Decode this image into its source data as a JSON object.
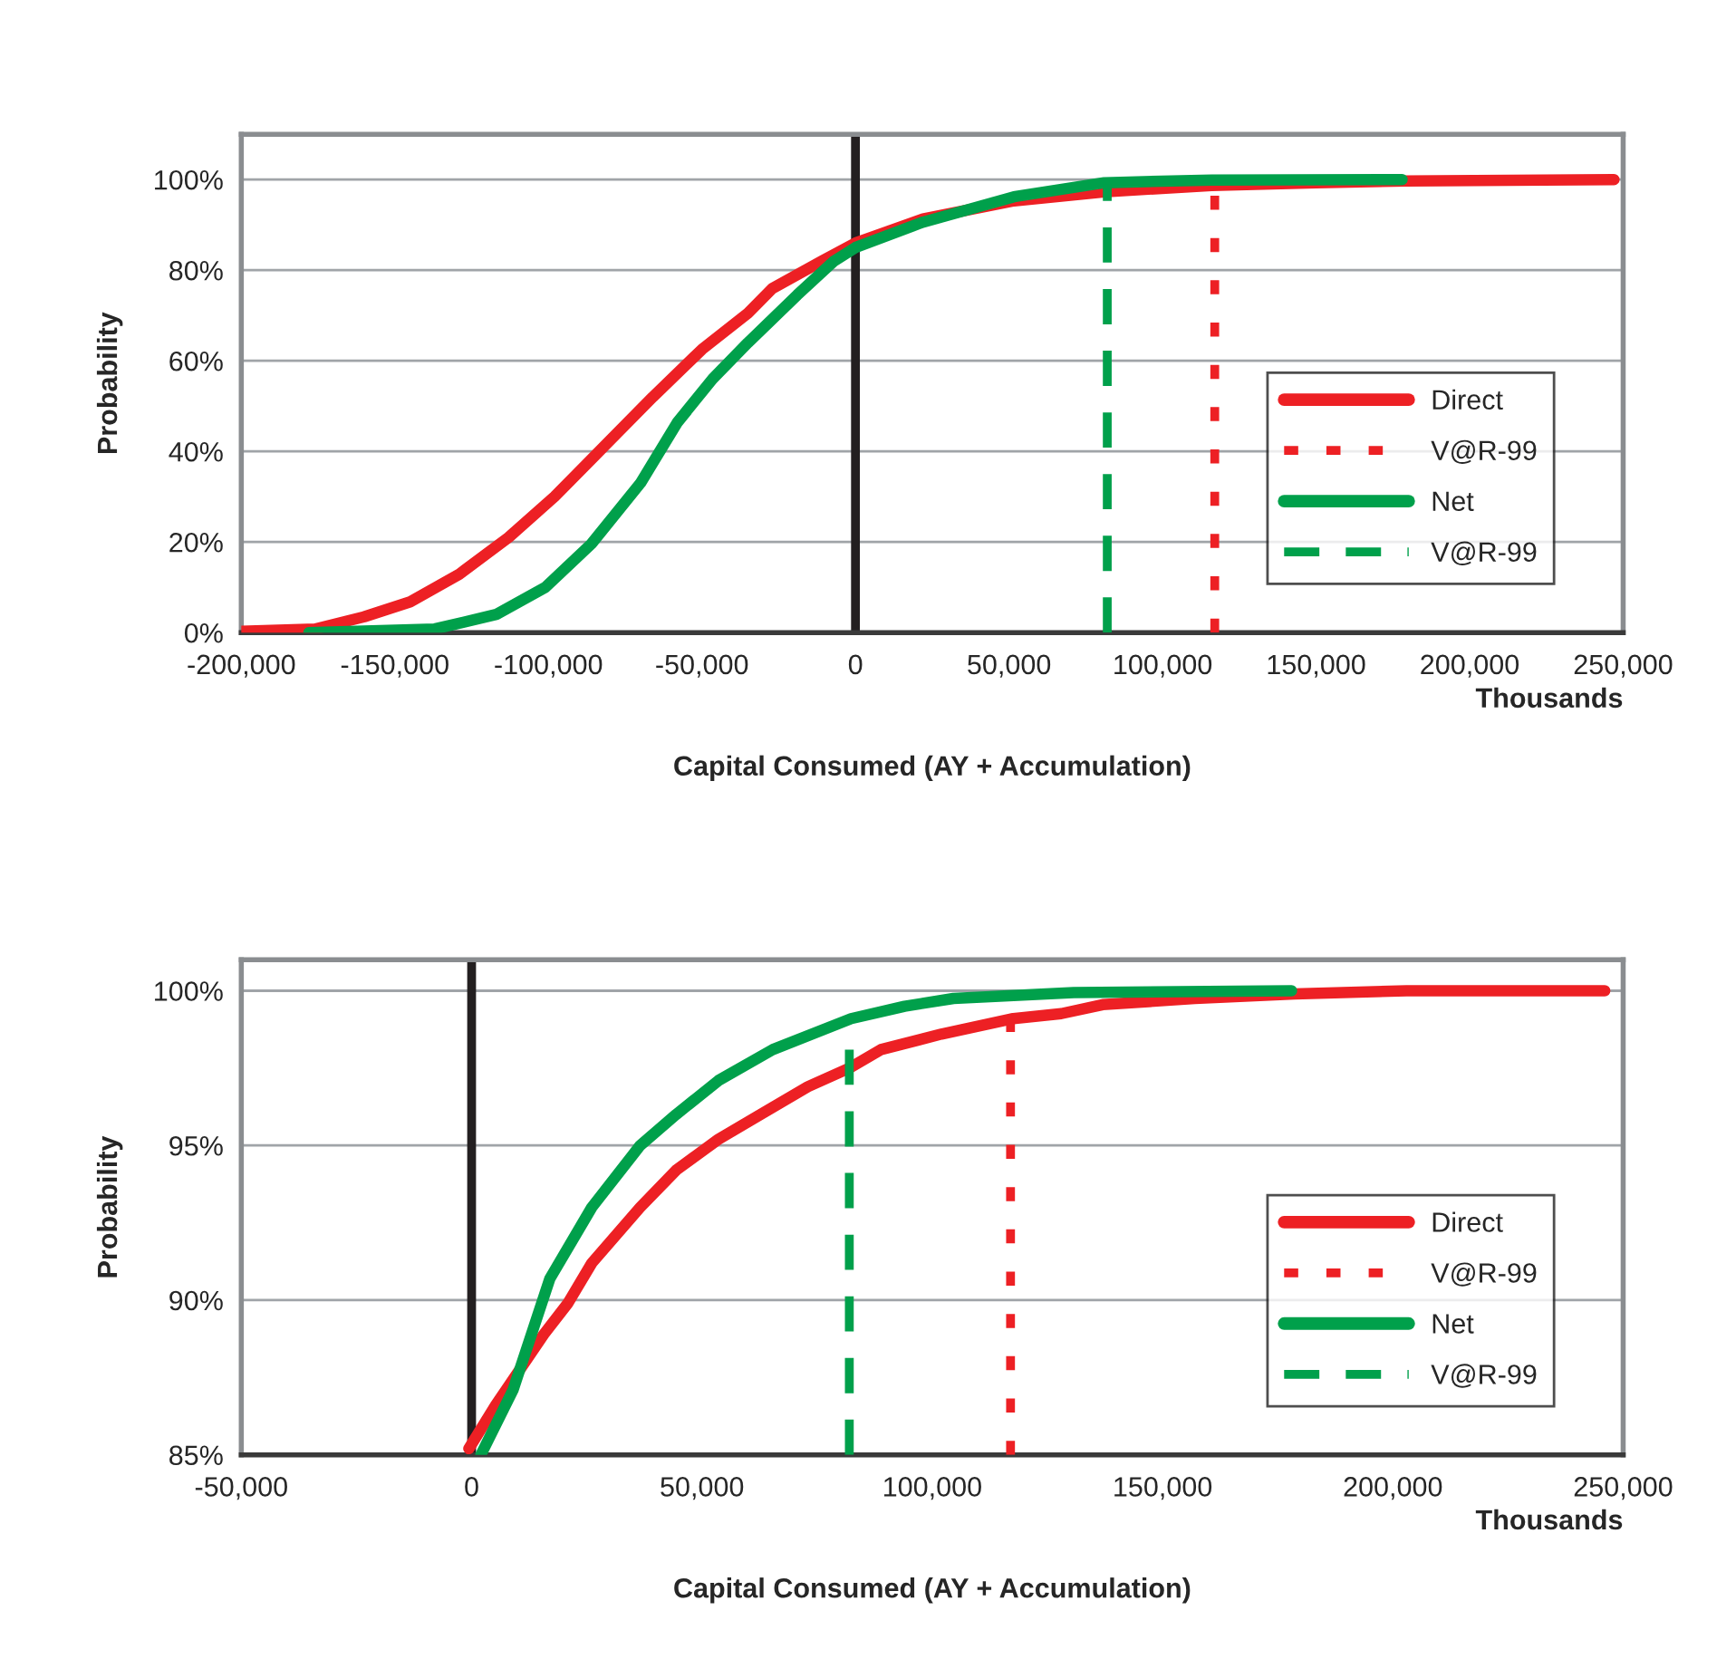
{
  "chart_data": [
    {
      "type": "line",
      "xlabel": "Capital Consumed (AY + Accumulation)",
      "ylabel": "Probability",
      "annotations": [
        "Thousands"
      ],
      "xlim": [
        -200000,
        250000
      ],
      "xticks": [
        {
          "value": -200000,
          "label": "-200,000"
        },
        {
          "value": -150000,
          "label": "-150,000"
        },
        {
          "value": -100000,
          "label": "-100,000"
        },
        {
          "value": -50000,
          "label": "-50,000"
        },
        0,
        {
          "value": 50000,
          "label": "50,000"
        },
        {
          "value": 100000,
          "label": "100,000"
        },
        {
          "value": 150000,
          "label": "150,000"
        },
        {
          "value": 200000,
          "label": "200,000"
        },
        {
          "value": 250000,
          "label": "250,000"
        }
      ],
      "ylim": [
        0,
        110
      ],
      "yticks": [
        {
          "value": 0,
          "label": "0%"
        },
        {
          "value": 20,
          "label": "20%"
        },
        {
          "value": 40,
          "label": "40%"
        },
        {
          "value": 60,
          "label": "60%"
        },
        {
          "value": 80,
          "label": "80%"
        },
        {
          "value": 100,
          "label": "100%"
        }
      ],
      "grid": "y",
      "legend": "bottom right",
      "marker": "none",
      "ref_lines": [
        {
          "axis": "x",
          "value": 0,
          "color": "#231f20"
        }
      ],
      "series": [
        {
          "name": "Direct",
          "color": "#ed2024",
          "line_style": "solid",
          "x": [
            -200000,
            -176000,
            -160000,
            -145000,
            -129000,
            -113000,
            -98000,
            -82000,
            -66000,
            -50000,
            -35000,
            -27000,
            -11000,
            0,
            22000,
            51600,
            81000,
            116000,
            150000,
            179000,
            247000
          ],
          "values": [
            0.3,
            0.8,
            3.5,
            6.8,
            12.9,
            21,
            30,
            41,
            52,
            62.5,
            70.5,
            76,
            82,
            86,
            91.3,
            95.3,
            97.3,
            98.7,
            99.3,
            99.7,
            100
          ]
        },
        {
          "name": "V@R-99",
          "color": "#ed2024",
          "line_style": "dotted",
          "x": [
            117000,
            117000
          ],
          "values": [
            0,
            99
          ]
        },
        {
          "name": "Net",
          "color": "#00a04b",
          "line_style": "solid",
          "x": [
            -178000,
            -137000,
            -117000,
            -101000,
            -86000,
            -70000,
            -58000,
            -46500,
            -35000,
            -19000,
            -7000,
            0,
            22000,
            51600,
            81000,
            116000,
            178000
          ],
          "values": [
            0,
            0.8,
            4,
            10,
            19.6,
            33,
            46.4,
            56,
            64,
            74.5,
            82,
            85,
            90.6,
            96.2,
            99.3,
            99.9,
            100
          ]
        },
        {
          "name": "V@R-99",
          "color": "#00a04b",
          "line_style": "dashed",
          "x": [
            82000,
            82000
          ],
          "values": [
            0,
            99
          ]
        }
      ]
    },
    {
      "type": "line",
      "xlabel": "Capital Consumed (AY + Accumulation)",
      "ylabel": "Probability",
      "annotations": [
        "Thousands"
      ],
      "xlim": [
        -50000,
        250000
      ],
      "xticks": [
        {
          "value": -50000,
          "label": "-50,000"
        },
        0,
        {
          "value": 50000,
          "label": "50,000"
        },
        {
          "value": 100000,
          "label": "100,000"
        },
        {
          "value": 150000,
          "label": "150,000"
        },
        {
          "value": 200000,
          "label": "200,000"
        },
        {
          "value": 250000,
          "label": "250,000"
        }
      ],
      "ylim": [
        85,
        101
      ],
      "yticks": [
        {
          "value": 85,
          "label": "85%"
        },
        {
          "value": 90,
          "label": "90%"
        },
        {
          "value": 95,
          "label": "95%"
        },
        {
          "value": 100,
          "label": "100%"
        }
      ],
      "grid": "y",
      "legend": "bottom right",
      "marker": "none",
      "ref_lines": [
        {
          "axis": "x",
          "value": 0,
          "color": "#231f20"
        }
      ],
      "series": [
        {
          "name": "Direct",
          "color": "#ed2024",
          "line_style": "solid",
          "x": [
            -600,
            5200,
            15700,
            20900,
            26100,
            36600,
            44400,
            53600,
            62700,
            73000,
            82000,
            88900,
            102000,
            117600,
            128000,
            137000,
            157000,
            178700,
            203000,
            246000
          ],
          "values": [
            85.2,
            86.6,
            88.9,
            89.9,
            91.2,
            93,
            94.2,
            95.2,
            96,
            96.9,
            97.5,
            98.1,
            98.6,
            99.1,
            99.26,
            99.55,
            99.75,
            99.9,
            100,
            100
          ]
        },
        {
          "name": "V@R-99",
          "color": "#ed2024",
          "line_style": "dotted",
          "x": [
            117000,
            117000
          ],
          "values": [
            85,
            99
          ]
        },
        {
          "name": "Net",
          "color": "#00a04b",
          "line_style": "solid",
          "x": [
            2000,
            9000,
            17000,
            26100,
            36600,
            44400,
            53600,
            65400,
            82400,
            94000,
            104600,
            130700,
            178000
          ],
          "values": [
            85,
            87.1,
            90.7,
            93,
            95,
            96,
            97.1,
            98.1,
            99.1,
            99.5,
            99.75,
            99.94,
            100
          ]
        },
        {
          "name": "V@R-99",
          "color": "#00a04b",
          "line_style": "dashed",
          "x": [
            82000,
            82000
          ],
          "values": [
            85,
            99
          ]
        }
      ]
    }
  ]
}
